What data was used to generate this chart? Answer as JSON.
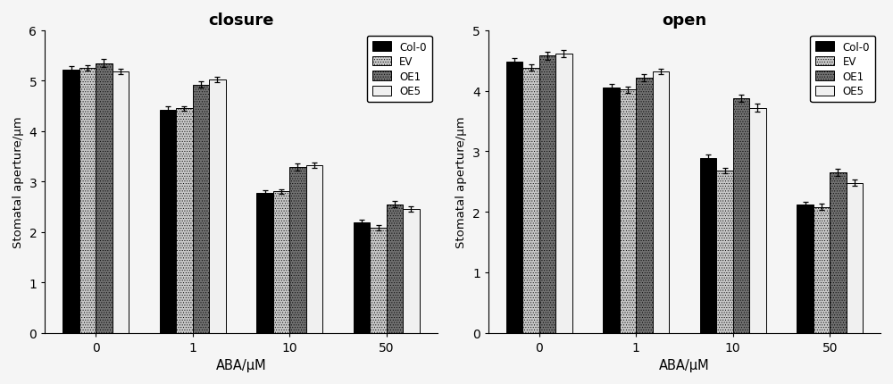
{
  "closure": {
    "title": "closure",
    "categories": [
      "0",
      "1",
      "10",
      "50"
    ],
    "series": {
      "Col-0": [
        5.22,
        4.42,
        2.78,
        2.18
      ],
      "EV": [
        5.25,
        4.45,
        2.8,
        2.08
      ],
      "OE1": [
        5.35,
        4.92,
        3.28,
        2.55
      ],
      "OE5": [
        5.18,
        5.02,
        3.32,
        2.45
      ]
    },
    "errors": {
      "Col-0": [
        0.07,
        0.07,
        0.05,
        0.06
      ],
      "EV": [
        0.05,
        0.05,
        0.05,
        0.05
      ],
      "OE1": [
        0.08,
        0.06,
        0.07,
        0.06
      ],
      "OE5": [
        0.05,
        0.05,
        0.05,
        0.05
      ]
    },
    "ylim": [
      0,
      6
    ],
    "yticks": [
      0,
      1,
      2,
      3,
      4,
      5,
      6
    ],
    "ylabel": "Stomatal aperture/μm",
    "xlabel": "ABA/μM"
  },
  "open": {
    "title": "open",
    "categories": [
      "0",
      "1",
      "10",
      "50"
    ],
    "series": {
      "Col-0": [
        4.48,
        4.05,
        2.88,
        2.12
      ],
      "EV": [
        4.38,
        4.02,
        2.68,
        2.08
      ],
      "OE1": [
        4.58,
        4.22,
        3.88,
        2.65
      ],
      "OE5": [
        4.62,
        4.32,
        3.72,
        2.48
      ]
    },
    "errors": {
      "Col-0": [
        0.06,
        0.06,
        0.06,
        0.05
      ],
      "EV": [
        0.05,
        0.05,
        0.05,
        0.05
      ],
      "OE1": [
        0.07,
        0.06,
        0.06,
        0.06
      ],
      "OE5": [
        0.06,
        0.05,
        0.06,
        0.05
      ]
    },
    "ylim": [
      0,
      5
    ],
    "yticks": [
      0,
      1,
      2,
      3,
      4,
      5
    ],
    "ylabel": "Stomatal aperture/μm",
    "xlabel": "ABA/μM"
  },
  "bar_styles": {
    "Col-0": {
      "facecolor": "#000000",
      "hatch": "",
      "edgecolor": "#000000"
    },
    "EV": {
      "facecolor": "#c8c8c8",
      "hatch": "......",
      "edgecolor": "#000000"
    },
    "OE1": {
      "facecolor": "#707070",
      "hatch": "......",
      "edgecolor": "#000000"
    },
    "OE5": {
      "facecolor": "#f0f0f0",
      "hatch": "",
      "edgecolor": "#000000"
    }
  },
  "bar_width": 0.17,
  "legend_labels": [
    "Col-0",
    "EV",
    "OE1",
    "OE5"
  ],
  "bg_color": "#f5f5f5"
}
